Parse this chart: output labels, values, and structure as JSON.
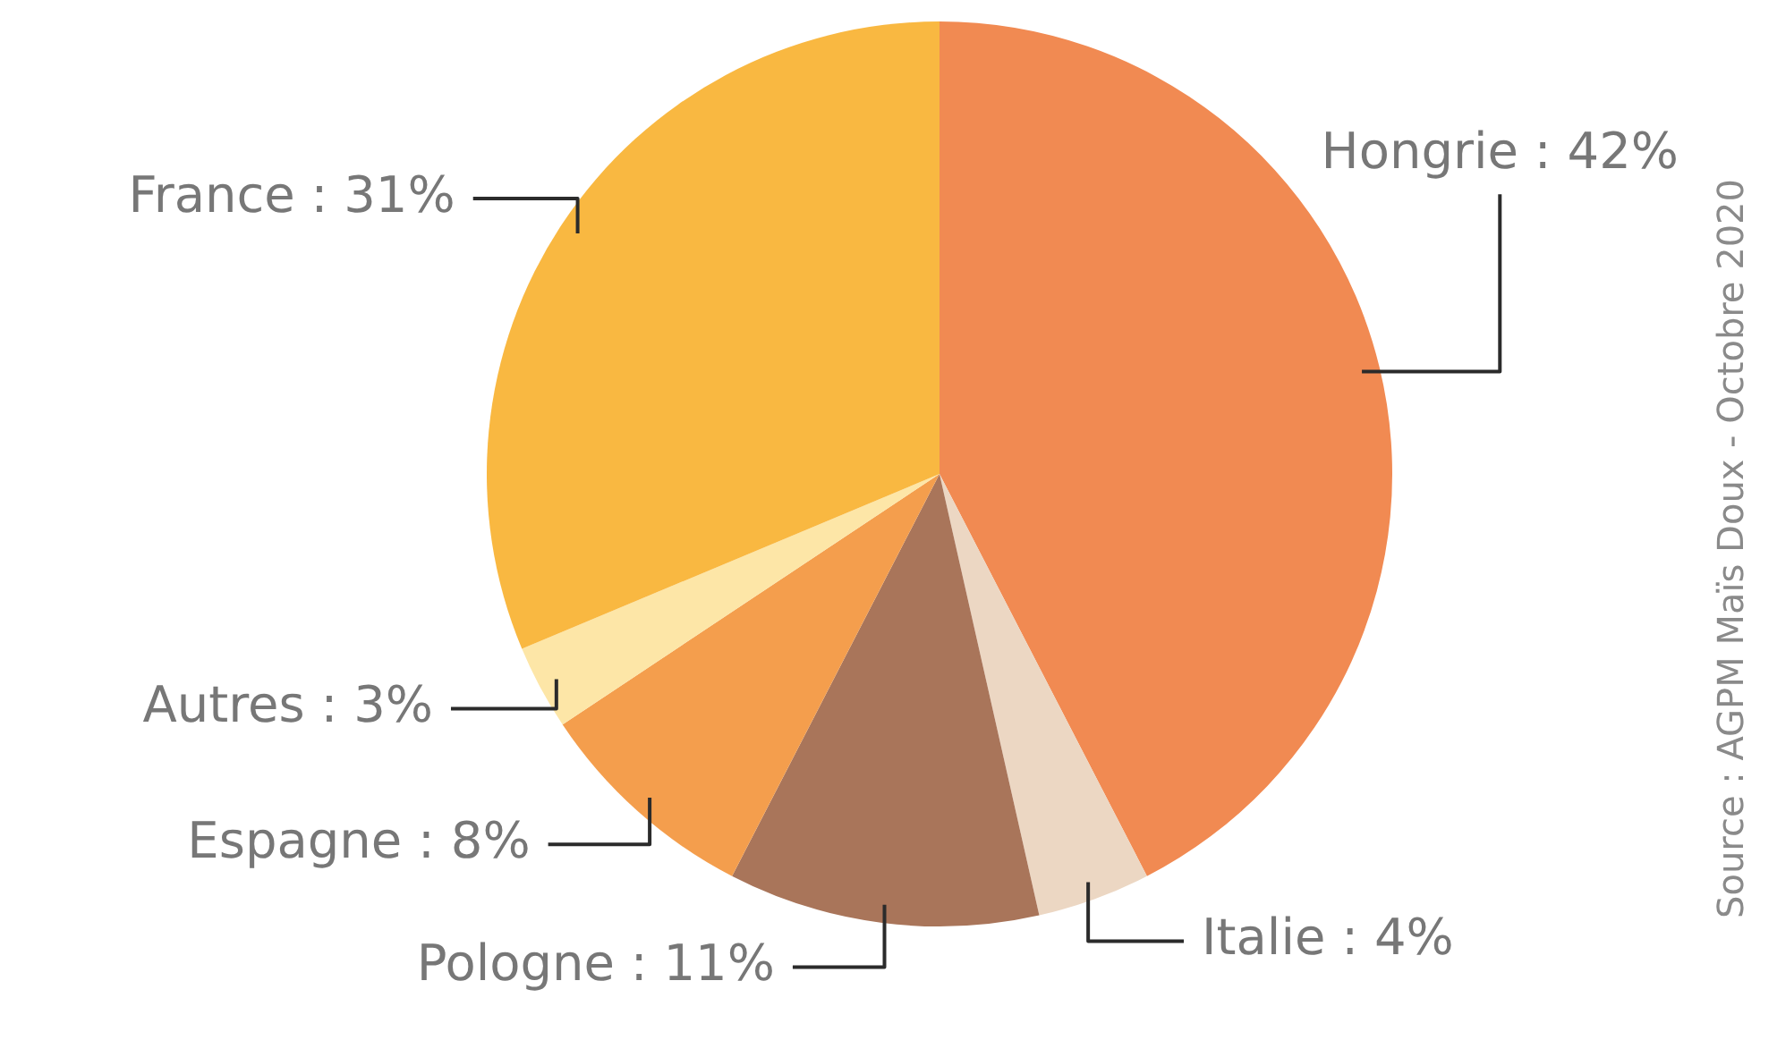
{
  "chart_data": {
    "type": "pie",
    "categories": [
      "Hongrie",
      "Italie",
      "Pologne",
      "Espagne",
      "Autres",
      "France"
    ],
    "values": [
      42,
      4,
      11,
      8,
      3,
      31
    ],
    "value_labels": [
      "42%",
      "4%",
      "11%",
      "8%",
      "3%",
      "31%"
    ],
    "colors": [
      "#f18a52",
      "#ecd7c3",
      "#a9755a",
      "#f49e4d",
      "#fde6a7",
      "#f9b841"
    ],
    "annotations": [
      "Source : AGPM Maïs Doux - Octobre 2020"
    ]
  }
}
